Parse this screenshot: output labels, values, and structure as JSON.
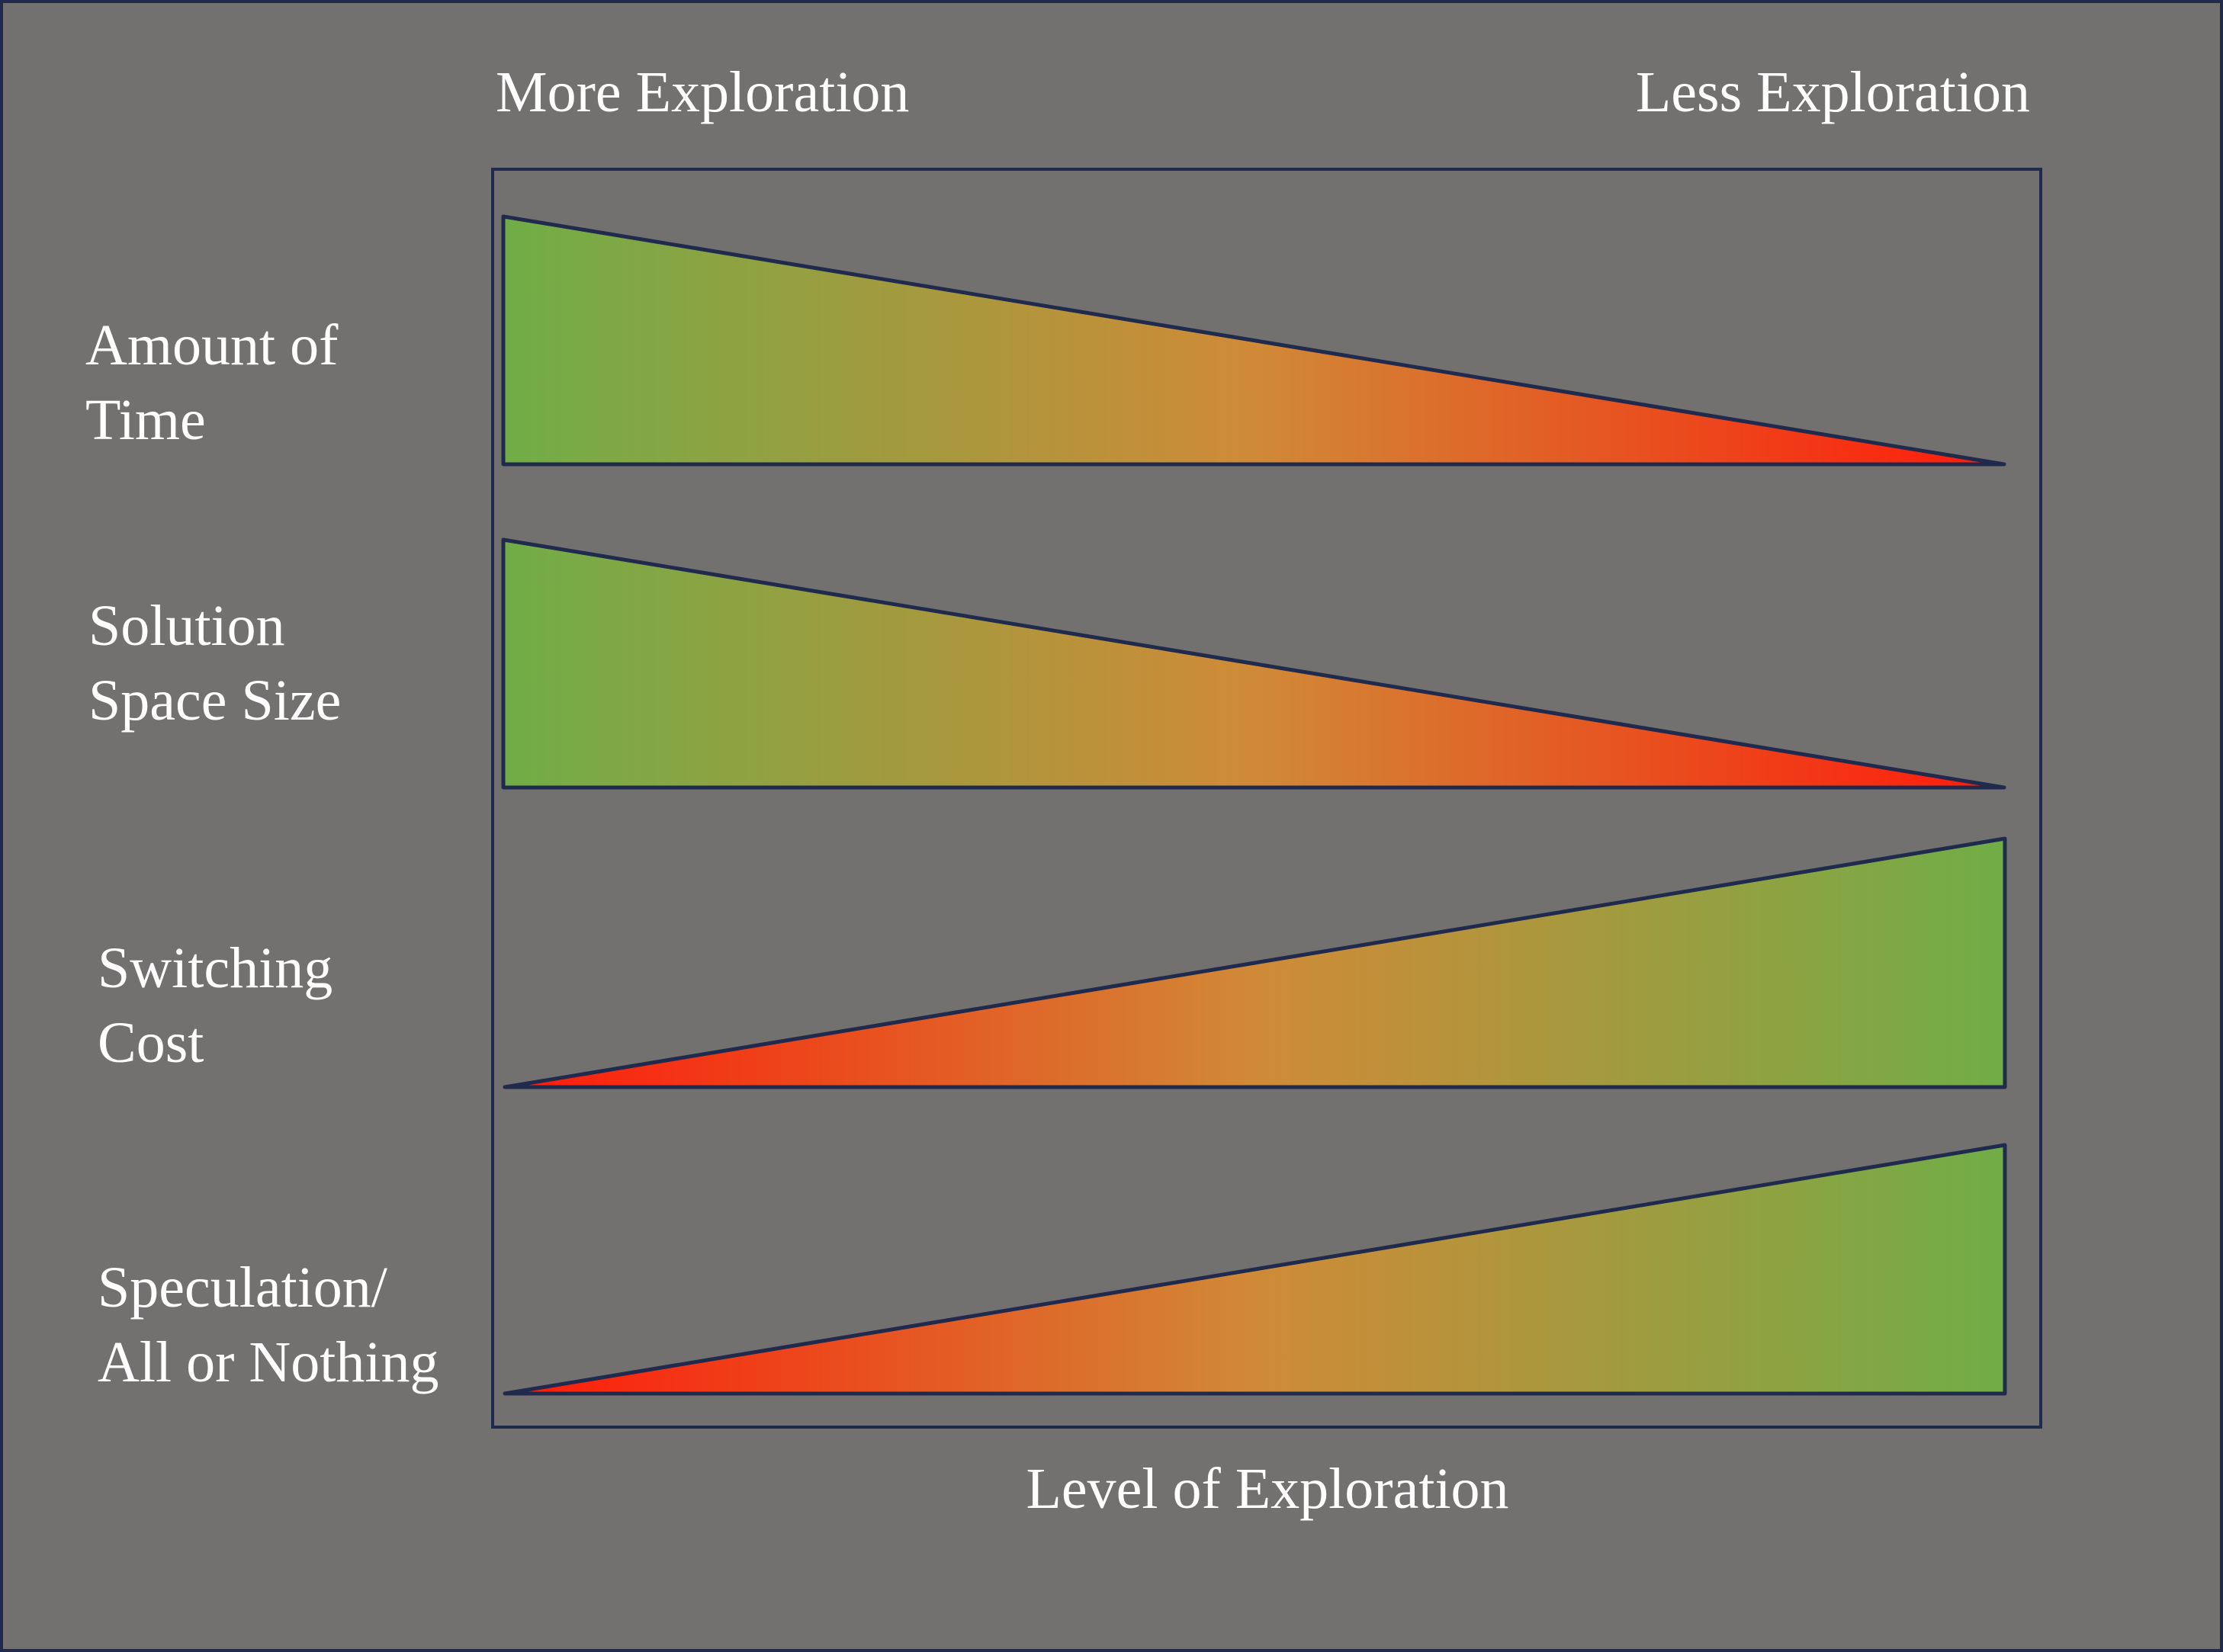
{
  "header": {
    "left_label": "More Exploration",
    "right_label": "Less Exploration"
  },
  "footer": {
    "axis_label": "Level of Exploration"
  },
  "rows": [
    {
      "label_line1": "Amount of",
      "label_line2": "Time",
      "direction": "decreasing"
    },
    {
      "label_line1": "Solution",
      "label_line2": "Space Size",
      "direction": "decreasing"
    },
    {
      "label_line1": "Switching",
      "label_line2": "Cost",
      "direction": "increasing"
    },
    {
      "label_line1": "Speculation/",
      "label_line2": "All or Nothing",
      "direction": "increasing"
    }
  ],
  "colors": {
    "background": "#737070",
    "border": "#1f2a4d",
    "green": "#70ad47",
    "red": "#ff1a0a",
    "text": "#ffffff"
  }
}
